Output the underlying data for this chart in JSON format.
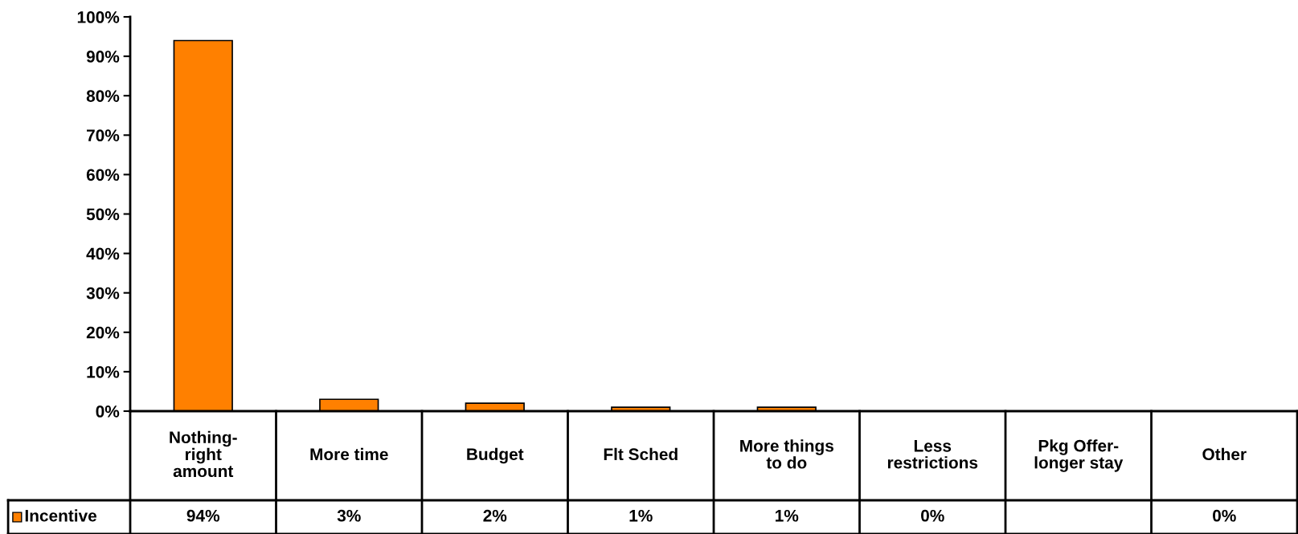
{
  "chart_data": {
    "type": "bar",
    "categories": [
      "Nothing-\nright\namount",
      "More time",
      "Budget",
      "Flt Sched",
      "More things\nto do",
      "Less\nrestrictions",
      "Pkg Offer-\nlonger stay",
      "Other"
    ],
    "series": [
      {
        "name": "Incentive",
        "color": "#ff8000",
        "values": [
          94,
          3,
          2,
          1,
          1,
          0,
          null,
          0
        ],
        "value_labels": [
          "94%",
          "3%",
          "2%",
          "1%",
          "1%",
          "0%",
          null,
          "0%"
        ]
      }
    ],
    "ylim": [
      0,
      100
    ],
    "yticks": [
      {
        "value": 0,
        "label": "0%"
      },
      {
        "value": 10,
        "label": "10%"
      },
      {
        "value": 20,
        "label": "20%"
      },
      {
        "value": 30,
        "label": "30%"
      },
      {
        "value": 40,
        "label": "40%"
      },
      {
        "value": 50,
        "label": "50%"
      },
      {
        "value": 60,
        "label": "60%"
      },
      {
        "value": 70,
        "label": "70%"
      },
      {
        "value": 80,
        "label": "80%"
      },
      {
        "value": 90,
        "label": "90%"
      },
      {
        "value": 100,
        "label": "100%"
      }
    ],
    "grid": false
  }
}
